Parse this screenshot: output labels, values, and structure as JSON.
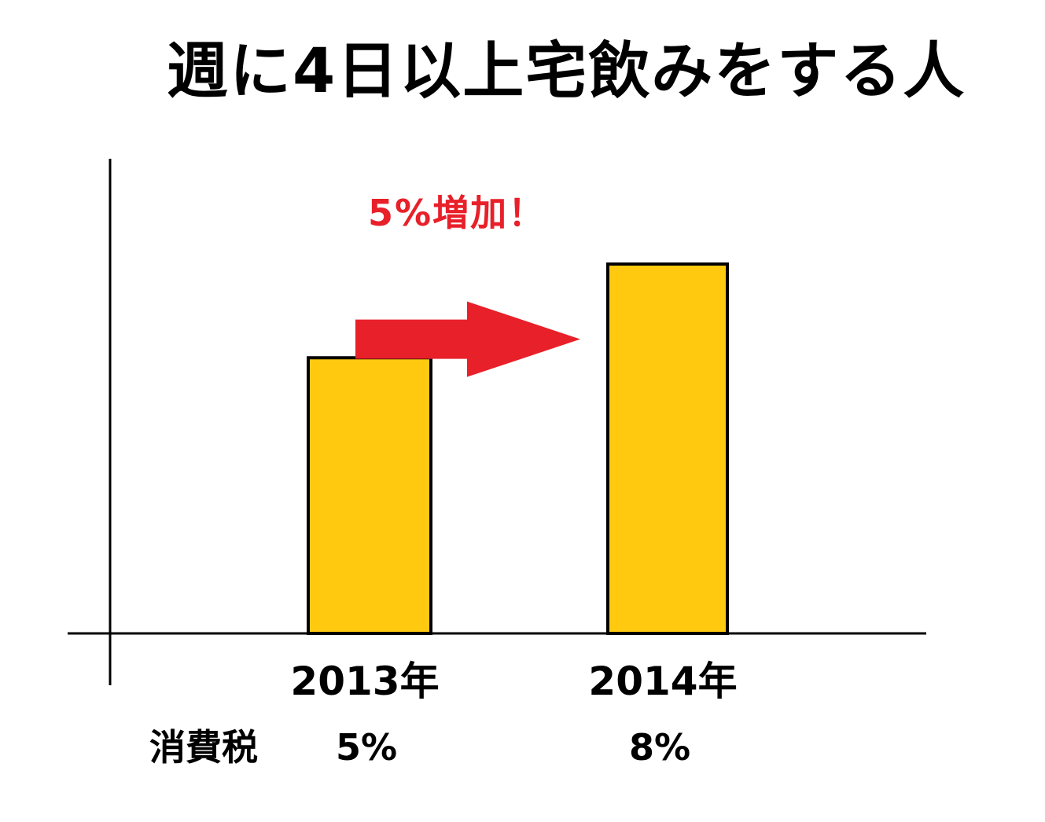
{
  "chart_data": {
    "type": "bar",
    "title": "週に4日以上宅飲みをする人",
    "categories": [
      "2013年",
      "2014年"
    ],
    "values": [
      100,
      134
    ],
    "value_note": "relative bar heights (y-axis unlabeled)",
    "bar_color": "#fec90f",
    "bar_outline": "#000000",
    "annotation": {
      "text": "5%増加！",
      "color": "#e8202a",
      "arrow_color": "#e8202a",
      "from_category": "2013年",
      "to_category": "2014年"
    },
    "extra_row": {
      "label": "消費税",
      "values": [
        "5%",
        "8%"
      ]
    },
    "xlabel": "",
    "ylabel": "",
    "grid": false,
    "legend": "none"
  }
}
